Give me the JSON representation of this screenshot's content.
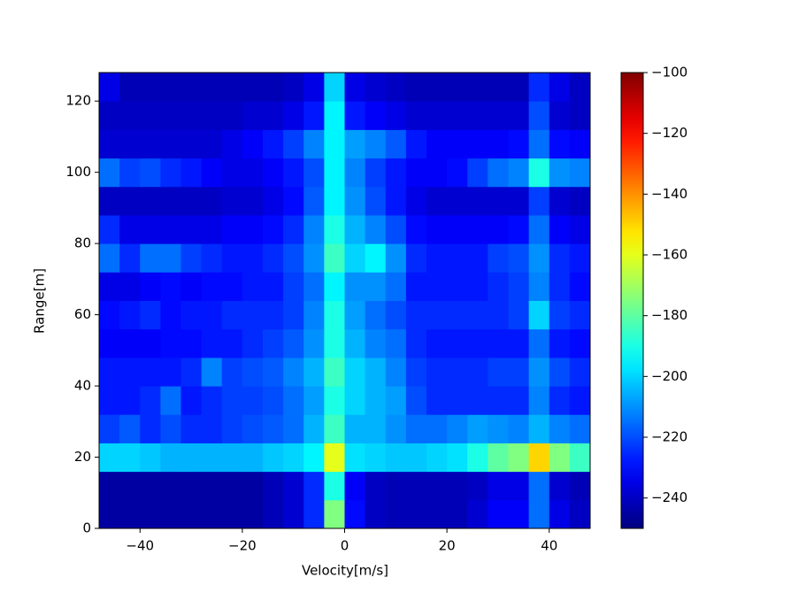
{
  "chart_data": {
    "type": "heatmap",
    "colormap": "jet",
    "xlabel": "Velocity[m/s]",
    "ylabel": "Range[m]",
    "x": [
      -46,
      -42,
      -38,
      -34,
      -30,
      -26,
      -22,
      -18,
      -14,
      -10,
      -6,
      -2,
      2,
      6,
      10,
      14,
      18,
      22,
      26,
      30,
      34,
      38,
      42,
      46
    ],
    "y": [
      4,
      12,
      20,
      28,
      36,
      44,
      52,
      60,
      68,
      76,
      84,
      92,
      100,
      108,
      116,
      124
    ],
    "z": [
      [
        -245,
        -245,
        -245,
        -245,
        -245,
        -245,
        -245,
        -245,
        -242,
        -238,
        -225,
        -175,
        -230,
        -240,
        -242,
        -242,
        -242,
        -242,
        -238,
        -232,
        -232,
        -215,
        -235,
        -240
      ],
      [
        -245,
        -245,
        -245,
        -245,
        -245,
        -245,
        -245,
        -245,
        -242,
        -238,
        -225,
        -190,
        -232,
        -240,
        -242,
        -242,
        -242,
        -242,
        -240,
        -235,
        -235,
        -215,
        -238,
        -242
      ],
      [
        -200,
        -200,
        -202,
        -205,
        -205,
        -205,
        -205,
        -205,
        -202,
        -200,
        -195,
        -160,
        -198,
        -200,
        -202,
        -202,
        -200,
        -198,
        -190,
        -180,
        -175,
        -150,
        -175,
        -185
      ],
      [
        -222,
        -218,
        -225,
        -220,
        -225,
        -225,
        -222,
        -220,
        -218,
        -215,
        -205,
        -185,
        -205,
        -205,
        -210,
        -215,
        -215,
        -212,
        -208,
        -210,
        -212,
        -205,
        -212,
        -215
      ],
      [
        -228,
        -228,
        -225,
        -215,
        -228,
        -225,
        -222,
        -222,
        -220,
        -215,
        -208,
        -190,
        -200,
        -205,
        -208,
        -220,
        -225,
        -225,
        -225,
        -225,
        -225,
        -212,
        -225,
        -228
      ],
      [
        -228,
        -228,
        -228,
        -228,
        -225,
        -212,
        -222,
        -220,
        -218,
        -212,
        -205,
        -185,
        -200,
        -205,
        -212,
        -222,
        -225,
        -225,
        -225,
        -222,
        -222,
        -210,
        -220,
        -225
      ],
      [
        -232,
        -232,
        -232,
        -230,
        -230,
        -228,
        -228,
        -225,
        -222,
        -218,
        -210,
        -190,
        -205,
        -212,
        -215,
        -225,
        -228,
        -228,
        -228,
        -228,
        -228,
        -215,
        -228,
        -230
      ],
      [
        -230,
        -228,
        -225,
        -230,
        -228,
        -228,
        -225,
        -225,
        -225,
        -222,
        -212,
        -190,
        -208,
        -215,
        -220,
        -225,
        -225,
        -225,
        -225,
        -225,
        -222,
        -200,
        -222,
        -225
      ],
      [
        -235,
        -235,
        -232,
        -230,
        -232,
        -230,
        -230,
        -228,
        -228,
        -222,
        -215,
        -195,
        -210,
        -210,
        -215,
        -228,
        -228,
        -228,
        -228,
        -225,
        -222,
        -212,
        -225,
        -230
      ],
      [
        -215,
        -225,
        -215,
        -215,
        -222,
        -225,
        -228,
        -228,
        -225,
        -220,
        -210,
        -185,
        -200,
        -195,
        -210,
        -225,
        -228,
        -228,
        -228,
        -222,
        -220,
        -210,
        -225,
        -228
      ],
      [
        -225,
        -235,
        -235,
        -235,
        -235,
        -235,
        -232,
        -232,
        -230,
        -225,
        -212,
        -190,
        -205,
        -212,
        -220,
        -230,
        -232,
        -232,
        -232,
        -232,
        -230,
        -215,
        -232,
        -235
      ],
      [
        -240,
        -240,
        -240,
        -240,
        -240,
        -240,
        -238,
        -238,
        -235,
        -230,
        -218,
        -195,
        -210,
        -220,
        -228,
        -235,
        -238,
        -238,
        -238,
        -238,
        -238,
        -222,
        -238,
        -240
      ],
      [
        -215,
        -222,
        -220,
        -225,
        -228,
        -232,
        -235,
        -235,
        -232,
        -228,
        -220,
        -195,
        -212,
        -222,
        -228,
        -232,
        -232,
        -230,
        -222,
        -215,
        -212,
        -190,
        -210,
        -212
      ],
      [
        -238,
        -238,
        -238,
        -238,
        -238,
        -238,
        -235,
        -232,
        -228,
        -222,
        -212,
        -195,
        -208,
        -212,
        -218,
        -228,
        -232,
        -232,
        -232,
        -232,
        -230,
        -215,
        -230,
        -232
      ],
      [
        -240,
        -240,
        -240,
        -240,
        -240,
        -240,
        -240,
        -238,
        -238,
        -235,
        -228,
        -195,
        -228,
        -232,
        -235,
        -238,
        -238,
        -238,
        -238,
        -238,
        -238,
        -220,
        -238,
        -240
      ],
      [
        -235,
        -242,
        -242,
        -242,
        -242,
        -242,
        -242,
        -242,
        -242,
        -240,
        -235,
        -200,
        -235,
        -238,
        -240,
        -242,
        -242,
        -242,
        -242,
        -242,
        -242,
        -225,
        -235,
        -240
      ]
    ],
    "xlim": [
      -48,
      48
    ],
    "xticks": [
      {
        "value": -40,
        "label": "−40"
      },
      {
        "value": -20,
        "label": "−20"
      },
      0,
      20,
      40
    ],
    "ylim": [
      0,
      128
    ],
    "yticks": [
      0,
      20,
      40,
      60,
      80,
      100,
      120
    ],
    "clim": [
      -250,
      -100
    ],
    "cticks": [
      {
        "value": -100,
        "label": "−100"
      },
      {
        "value": -120,
        "label": "−120"
      },
      {
        "value": -140,
        "label": "−140"
      },
      {
        "value": -160,
        "label": "−160"
      },
      {
        "value": -180,
        "label": "−180"
      },
      {
        "value": -200,
        "label": "−200"
      },
      {
        "value": -220,
        "label": "−220"
      },
      {
        "value": -240,
        "label": "−240"
      }
    ]
  }
}
